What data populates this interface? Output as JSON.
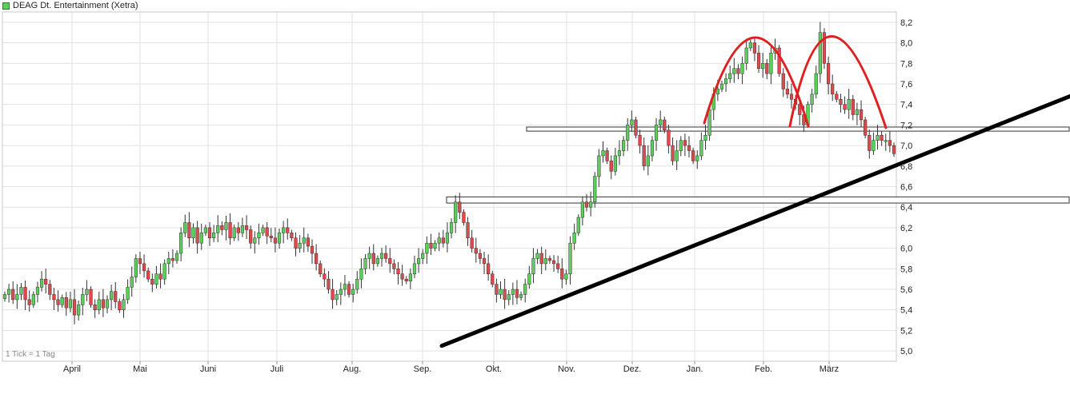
{
  "legend": {
    "label": "DEAG Dt. Entertainment (Xetra)",
    "swatch_color": "#5ad05a"
  },
  "note": "1 Tick = 1 Tag",
  "colors": {
    "up": "#5ad05a",
    "down": "#e0484c",
    "wick": "#333333",
    "grid": "#e2e2e2",
    "trendline": "#000000",
    "pattern": "#e02020",
    "band_border": "#333333"
  },
  "chart_data": {
    "type": "candlestick",
    "title": "DEAG Dt. Entertainment (Xetra)",
    "x_labels": [
      "April",
      "Mai",
      "Juni",
      "Juli",
      "Aug.",
      "Sep.",
      "Okt.",
      "Nov.",
      "Dez.",
      "Jan.",
      "Feb.",
      "März"
    ],
    "y_ticks": [
      "5,0",
      "5,2",
      "5,4",
      "5,6",
      "5,8",
      "6,0",
      "6,2",
      "6,4",
      "6,6",
      "6,8",
      "7,0",
      "7,2",
      "7,4",
      "7,6",
      "7,8",
      "8,0",
      "8,2"
    ],
    "ylim": [
      4.9,
      8.3
    ],
    "grid": true,
    "closes": [
      5.55,
      5.6,
      5.5,
      5.55,
      5.62,
      5.5,
      5.45,
      5.55,
      5.62,
      5.7,
      5.65,
      5.55,
      5.5,
      5.45,
      5.52,
      5.42,
      5.5,
      5.35,
      5.45,
      5.55,
      5.6,
      5.45,
      5.4,
      5.5,
      5.42,
      5.5,
      5.58,
      5.48,
      5.4,
      5.5,
      5.62,
      5.72,
      5.9,
      5.85,
      5.78,
      5.7,
      5.65,
      5.75,
      5.7,
      5.85,
      5.9,
      5.88,
      5.95,
      6.15,
      6.25,
      6.1,
      6.2,
      6.05,
      6.15,
      6.2,
      6.1,
      6.15,
      6.22,
      6.18,
      6.25,
      6.1,
      6.2,
      6.15,
      6.22,
      6.18,
      6.05,
      6.1,
      6.15,
      6.2,
      6.12,
      6.1,
      6.05,
      6.15,
      6.2,
      6.15,
      6.1,
      6.0,
      6.05,
      6.1,
      6.02,
      5.95,
      5.85,
      5.75,
      5.7,
      5.6,
      5.5,
      5.55,
      5.6,
      5.65,
      5.55,
      5.6,
      5.7,
      5.8,
      5.9,
      5.95,
      5.85,
      5.9,
      5.95,
      5.9,
      5.85,
      5.8,
      5.75,
      5.7,
      5.68,
      5.75,
      5.85,
      5.9,
      5.95,
      6.05,
      6.0,
      6.05,
      6.1,
      6.05,
      6.15,
      6.25,
      6.45,
      6.35,
      6.25,
      6.1,
      6.0,
      5.95,
      5.9,
      5.85,
      5.75,
      5.65,
      5.55,
      5.6,
      5.5,
      5.55,
      5.6,
      5.52,
      5.55,
      5.65,
      5.75,
      5.9,
      5.95,
      5.85,
      5.9,
      5.88,
      5.85,
      5.8,
      5.7,
      5.75,
      6.05,
      6.15,
      6.3,
      6.45,
      6.4,
      6.45,
      6.7,
      6.9,
      6.95,
      6.85,
      6.75,
      6.9,
      6.95,
      7.05,
      7.2,
      7.25,
      7.1,
      7.0,
      6.8,
      6.9,
      7.05,
      7.2,
      7.25,
      7.15,
      7.0,
      6.85,
      6.95,
      7.05,
      7.0,
      6.95,
      6.85,
      6.9,
      7.05,
      7.1,
      7.35,
      7.5,
      7.55,
      7.6,
      7.65,
      7.7,
      7.75,
      7.7,
      7.8,
      7.95,
      8.0,
      7.9,
      7.75,
      7.8,
      7.7,
      7.9,
      7.95,
      7.7,
      7.55,
      7.5,
      7.45,
      7.4,
      7.3,
      7.2,
      7.4,
      7.5,
      7.7,
      8.1,
      7.8,
      7.6,
      7.5,
      7.45,
      7.4,
      7.35,
      7.45,
      7.3,
      7.35,
      7.25,
      7.1,
      6.95,
      7.05,
      7.1,
      7.05,
      7.05,
      7.0,
      6.92
    ],
    "horizontal_bands": [
      [
        7.14,
        7.18
      ],
      [
        6.44,
        6.5
      ]
    ],
    "trendline": [
      [
        0.0,
        5.05
      ],
      [
        1.0,
        7.48
      ]
    ]
  }
}
